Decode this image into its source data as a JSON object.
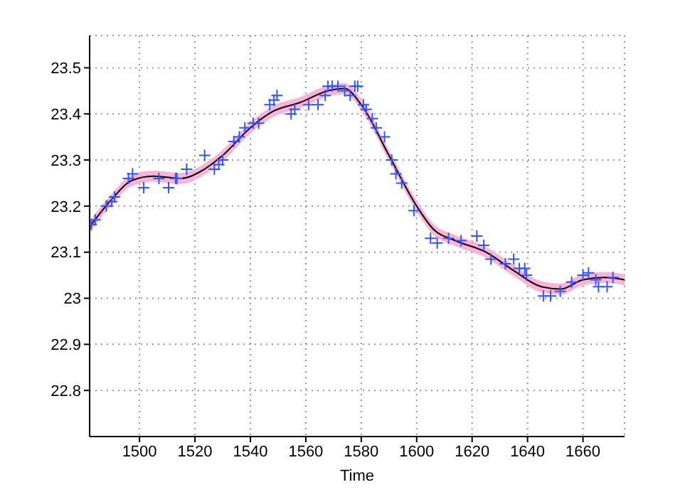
{
  "chart_data": {
    "type": "scatter",
    "xlabel": "Time",
    "xlim": [
      1482,
      1675
    ],
    "xticks": [
      1500,
      1520,
      1540,
      1560,
      1580,
      1600,
      1620,
      1640,
      1660
    ],
    "ylim": [
      22.7,
      23.57
    ],
    "yticks": [
      22.8,
      22.9,
      23,
      23.1,
      23.2,
      23.3,
      23.4,
      23.5
    ],
    "grid": true,
    "legend": false,
    "series": [
      {
        "type": "line",
        "color": "#000000",
        "marker": "none",
        "x": [
          1482,
          1490,
          1497,
          1505,
          1515,
          1522,
          1530,
          1540,
          1548,
          1558,
          1568,
          1574,
          1580,
          1590,
          1600,
          1606,
          1614,
          1625,
          1635,
          1645,
          1652,
          1660,
          1668,
          1675
        ],
        "values": [
          23.155,
          23.215,
          23.255,
          23.265,
          23.26,
          23.275,
          23.31,
          23.37,
          23.405,
          23.425,
          23.45,
          23.455,
          23.42,
          23.31,
          23.2,
          23.15,
          23.125,
          23.1,
          23.06,
          23.025,
          23.02,
          23.04,
          23.045,
          23.04
        ],
        "lower": [
          23.143,
          23.203,
          23.243,
          23.253,
          23.248,
          23.263,
          23.298,
          23.358,
          23.393,
          23.413,
          23.438,
          23.443,
          23.408,
          23.298,
          23.188,
          23.138,
          23.113,
          23.088,
          23.048,
          23.013,
          23.008,
          23.028,
          23.033,
          23.028
        ],
        "upper": [
          23.167,
          23.227,
          23.267,
          23.277,
          23.272,
          23.287,
          23.322,
          23.382,
          23.417,
          23.437,
          23.462,
          23.467,
          23.432,
          23.322,
          23.212,
          23.162,
          23.137,
          23.112,
          23.072,
          23.037,
          23.032,
          23.052,
          23.057,
          23.052
        ]
      },
      {
        "color": "#3355ff",
        "marker": "cross",
        "x": [
          1482.6,
          1484,
          1488,
          1490,
          1491,
          1496,
          1497.5,
          1501.5,
          1507,
          1510.5,
          1513,
          1513.5,
          1517,
          1523.5,
          1527,
          1528.6,
          1530,
          1534,
          1536,
          1538,
          1541,
          1543,
          1547,
          1548.5,
          1549.6,
          1554.7,
          1556,
          1561,
          1564.4,
          1567,
          1568,
          1569.5,
          1571.6,
          1574,
          1576,
          1577.7,
          1578.7,
          1580.8,
          1581.8,
          1584,
          1585.4,
          1588.4,
          1591,
          1592.5,
          1594.6,
          1599,
          1605,
          1607.4,
          1611.5,
          1616,
          1621.7,
          1624.2,
          1626.8,
          1632,
          1635,
          1637,
          1639,
          1639.6,
          1645.7,
          1648.3,
          1651.8,
          1655.9,
          1660,
          1662,
          1664.6,
          1665.6,
          1668.7,
          1670.8
        ],
        "values": [
          23.16,
          23.17,
          23.2,
          23.21,
          23.22,
          23.26,
          23.27,
          23.24,
          23.26,
          23.24,
          23.26,
          23.26,
          23.28,
          23.31,
          23.28,
          23.29,
          23.3,
          23.34,
          23.35,
          23.37,
          23.38,
          23.38,
          23.42,
          23.43,
          23.44,
          23.4,
          23.41,
          23.42,
          23.42,
          23.44,
          23.46,
          23.46,
          23.46,
          23.45,
          23.44,
          23.46,
          23.46,
          23.42,
          23.41,
          23.39,
          23.37,
          23.35,
          23.3,
          23.27,
          23.25,
          23.19,
          23.13,
          23.12,
          23.13,
          23.125,
          23.135,
          23.115,
          23.085,
          23.075,
          23.085,
          23.065,
          23.065,
          23.05,
          23.005,
          23.005,
          23.015,
          23.035,
          23.05,
          23.055,
          23.04,
          23.025,
          23.025,
          23.045
        ]
      }
    ]
  }
}
